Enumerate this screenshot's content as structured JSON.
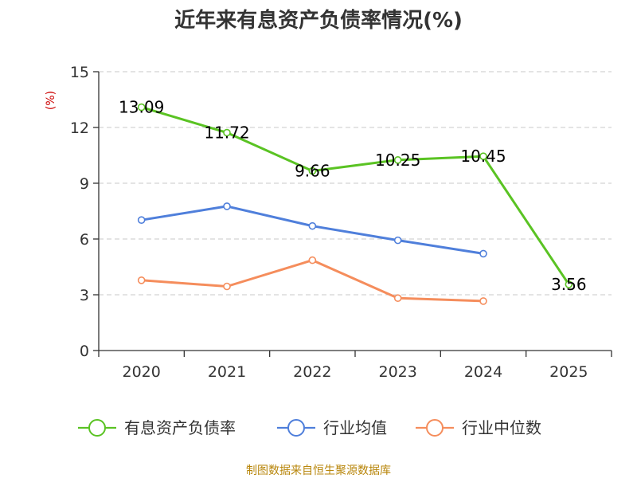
{
  "chart_data": {
    "type": "line",
    "title": "近年来有息资产负债率情况(%)",
    "ylabel": "(%)",
    "xlabel": "",
    "categories": [
      "2020",
      "2021",
      "2022",
      "2023",
      "2024",
      "2025"
    ],
    "ylim": [
      0,
      15
    ],
    "yticks": [
      0,
      3,
      6,
      9,
      12,
      15
    ],
    "grid": true,
    "legend_position": "bottom",
    "series": [
      {
        "name": "有息资产负债率",
        "color": "#5ac323",
        "values": [
          13.09,
          11.72,
          9.66,
          10.25,
          10.45,
          3.56
        ],
        "labels": [
          "13.09",
          "11.72",
          "9.66",
          "10.25",
          "10.45",
          "3.56"
        ]
      },
      {
        "name": "行业均值",
        "color": "#4f7fdb",
        "values": [
          7.02,
          7.76,
          6.7,
          5.93,
          5.21,
          null
        ]
      },
      {
        "name": "行业中位数",
        "color": "#f58d5c",
        "values": [
          3.78,
          3.45,
          4.86,
          2.82,
          2.66,
          null
        ]
      }
    ]
  },
  "source": "制图数据来自恒生聚源数据库"
}
